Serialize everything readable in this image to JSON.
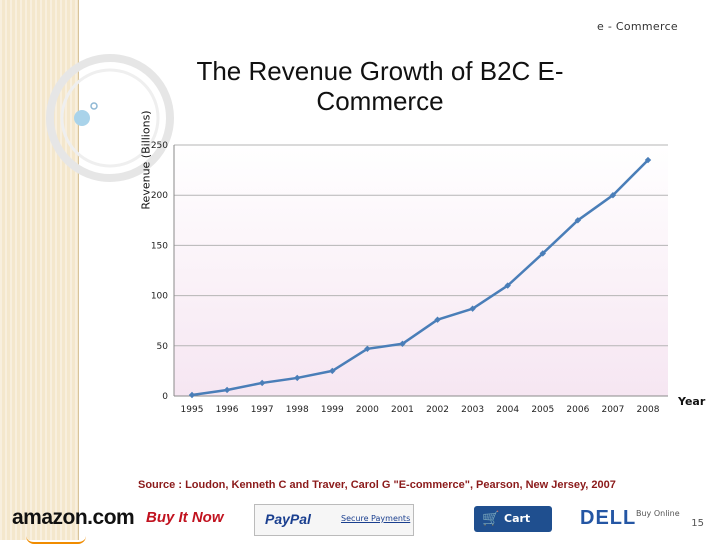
{
  "header": {
    "label": "e - Commerce"
  },
  "chart_data": {
    "type": "line",
    "title": "The Revenue Growth of B2C E-Commerce",
    "xlabel": "Year",
    "ylabel": "Revenue (Billions)",
    "categories": [
      "1995",
      "1996",
      "1997",
      "1998",
      "1999",
      "2000",
      "2001",
      "2002",
      "2003",
      "2004",
      "2005",
      "2006",
      "2007",
      "2008"
    ],
    "series": [
      {
        "values": [
          1,
          6,
          13,
          18,
          25,
          47,
          52,
          76,
          87,
          110,
          142,
          175,
          200,
          235
        ]
      }
    ],
    "ylim": [
      0,
      250
    ],
    "yticks": [
      "0",
      "50",
      "100",
      "150",
      "200",
      "250"
    ],
    "grid": true,
    "colors": {
      "line": "#4a7eb8",
      "marker": "#4a7eb8",
      "grid": "#b5b5b5",
      "plot_bg_top": "#ffffff",
      "plot_bg_bottom": "#f6e6f2"
    }
  },
  "source": "Source : Loudon, Kenneth C and Traver, Carol G \"E-commerce\", Pearson, New Jersey, 2007",
  "footer": {
    "amazon": "amazon.com",
    "buy_it_now": "Buy It Now",
    "paypal": "PayPal",
    "secure_payments": "Secure Payments",
    "cart": "Cart",
    "dell": "DELL",
    "buy_online": "Buy Online",
    "page_number": "15"
  }
}
